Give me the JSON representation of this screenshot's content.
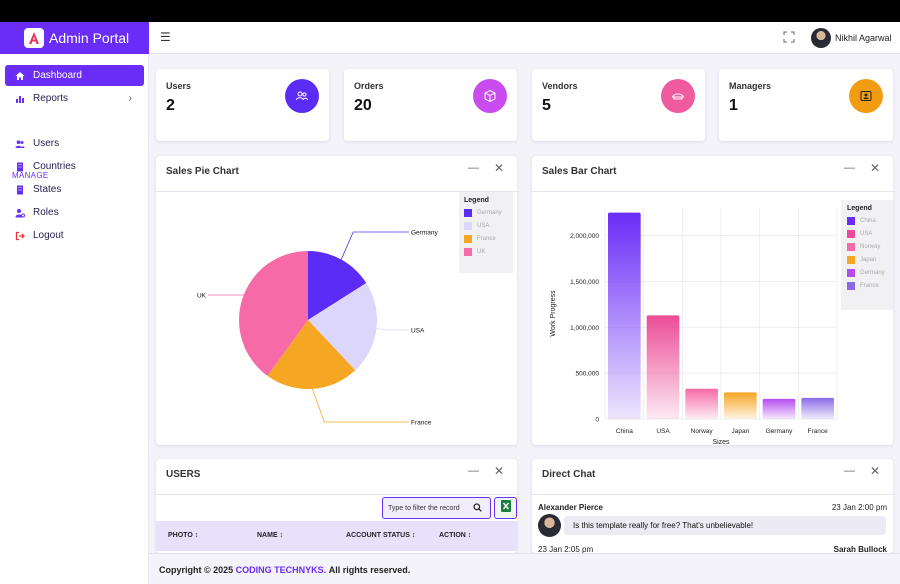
{
  "brand": {
    "title": "Admin Portal"
  },
  "header": {
    "username": "Nikhil Agarwal"
  },
  "sidebar": {
    "section": "MANAGE",
    "items": [
      {
        "label": "Dashboard"
      },
      {
        "label": "Reports"
      },
      {
        "label": "Users"
      },
      {
        "label": "Countries"
      },
      {
        "label": "States"
      },
      {
        "label": "Roles"
      },
      {
        "label": "Logout"
      }
    ]
  },
  "stats": [
    {
      "label": "Users",
      "value": "2",
      "color": "#5b2cf5"
    },
    {
      "label": "Orders",
      "value": "20",
      "color": "#c84cf0"
    },
    {
      "label": "Vendors",
      "value": "5",
      "color": "#f05a9e"
    },
    {
      "label": "Managers",
      "value": "1",
      "color": "#f29c11"
    }
  ],
  "pie_panel": {
    "title": "Sales Pie Chart",
    "legend_title": "Legend"
  },
  "bar_panel": {
    "title": "Sales Bar Chart",
    "legend_title": "Legend"
  },
  "chart_data": [
    {
      "type": "pie",
      "title": "Sales Pie Chart",
      "labels": [
        "Germany",
        "USA",
        "France",
        "UK"
      ],
      "values": [
        16,
        22,
        22,
        40
      ],
      "colors": [
        "#5b2cf5",
        "#dcd6fb",
        "#f5a623",
        "#f76aa8"
      ],
      "legend": [
        "Germany",
        "USA",
        "France",
        "UK"
      ]
    },
    {
      "type": "bar",
      "title": "Sales Bar Chart",
      "categories": [
        "China",
        "USA",
        "Norway",
        "Japan",
        "Germany",
        "France"
      ],
      "values": [
        2250000,
        1130000,
        330000,
        290000,
        220000,
        230000
      ],
      "colors": [
        "#6a2cf7",
        "#ec4c97",
        "#f76aa8",
        "#f5a623",
        "#b54cf0",
        "#8b6ae8"
      ],
      "ylabel": "Work Progress",
      "xlabel": "Sizes",
      "yticks": [
        "0",
        "500,000",
        "1,000,000",
        "1,500,000",
        "2,000,000"
      ],
      "ylim": [
        0,
        2300000
      ],
      "legend": [
        "China",
        "USA",
        "Norway",
        "Japan",
        "Germany",
        "France"
      ]
    }
  ],
  "users_panel": {
    "title": "USERS",
    "search_placeholder": "Type to filter the record",
    "columns": [
      "PHOTO",
      "NAME",
      "ACCOUNT STATUS",
      "ACTION"
    ]
  },
  "chat_panel": {
    "title": "Direct Chat",
    "sender1": "Alexander Pierce",
    "time1": "23 Jan 2:00 pm",
    "message1": "Is this template really for free? That's unbelievable!",
    "time2": "23 Jan 2:05 pm",
    "sender2": "Sarah Bullock"
  },
  "footer": {
    "prefix": "Copyright © 2025",
    "org": "CODING TECHNYKS.",
    "suffix": "All rights reserved."
  }
}
